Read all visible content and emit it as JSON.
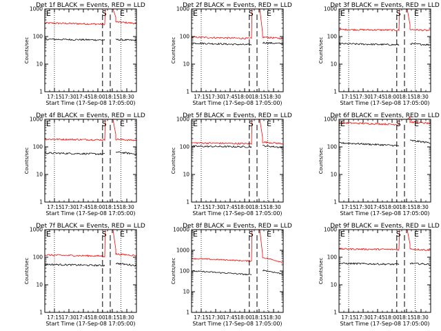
{
  "chart_data": [
    {
      "type": "line",
      "title": "Det 1f BLACK = Events, RED = LLD",
      "xlabel": "Start Time (17-Sep-08 17:05:00)",
      "ylabel": "Counts/sec",
      "yscale": "log",
      "ymax": 1000,
      "yticks": [
        "1",
        "10",
        "100",
        "1000"
      ],
      "x_ticks": [
        "17:15",
        "17:30",
        "17:45",
        "18:00",
        "18:15",
        "18:30"
      ],
      "markers": [
        {
          "label": "E",
          "time": "17:05"
        },
        {
          "label": "S",
          "time": "18:07"
        },
        {
          "label": "E",
          "time": "18:20"
        }
      ],
      "events": {
        "pre": [
          80,
          75
        ],
        "post": [
          78,
          72
        ]
      },
      "lld": {
        "pre": [
          310,
          280
        ],
        "post": [
          340,
          300
        ]
      }
    },
    {
      "type": "line",
      "title": "Det 2f BLACK = Events, RED = LLD",
      "xlabel": "Start Time (17-Sep-08 17:05:00)",
      "ylabel": "Counts/sec",
      "yscale": "log",
      "ymax": 1000,
      "yticks": [
        "1",
        "10",
        "100",
        "1000"
      ],
      "x_ticks": [
        "17:15",
        "17:30",
        "17:45",
        "18:00",
        "18:15",
        "18:30"
      ],
      "markers": [
        {
          "label": "E",
          "time": "17:05"
        },
        {
          "label": "S",
          "time": "18:07"
        },
        {
          "label": "E",
          "time": "18:20"
        }
      ],
      "events": {
        "pre": [
          58,
          50
        ],
        "post": [
          60,
          55
        ]
      },
      "lld": {
        "pre": [
          95,
          85
        ],
        "post": [
          95,
          85
        ]
      }
    },
    {
      "type": "line",
      "title": "Det 3f BLACK = Events, RED = LLD",
      "xlabel": "Start Time (17-Sep-08 17:05:00)",
      "ylabel": "Counts/sec",
      "yscale": "log",
      "ymax": 1000,
      "yticks": [
        "1",
        "10",
        "100",
        "1000"
      ],
      "x_ticks": [
        "17:15",
        "17:30",
        "17:45",
        "18:00",
        "18:15",
        "18:30"
      ],
      "markers": [
        {
          "label": "E",
          "time": "17:05"
        },
        {
          "label": "S",
          "time": "18:07"
        },
        {
          "label": "E",
          "time": "18:20"
        }
      ],
      "events": {
        "pre": [
          55,
          50
        ],
        "post": [
          55,
          50
        ]
      },
      "lld": {
        "pre": [
          180,
          170
        ],
        "post": [
          180,
          165
        ]
      }
    },
    {
      "type": "line",
      "title": "Det 4f BLACK = Events, RED = LLD",
      "xlabel": "Start Time (17-Sep-08 17:05:00)",
      "ylabel": "Counts/sec",
      "yscale": "log",
      "ymax": 1000,
      "yticks": [
        "1",
        "10",
        "100",
        "1000"
      ],
      "x_ticks": [
        "17:15",
        "17:30",
        "17:45",
        "18:00",
        "18:15",
        "18:30"
      ],
      "markers": [
        {
          "label": "E",
          "time": "17:05"
        },
        {
          "label": "S",
          "time": "18:07"
        },
        {
          "label": "E",
          "time": "18:20"
        }
      ],
      "events": {
        "pre": [
          60,
          55
        ],
        "post": [
          65,
          55
        ]
      },
      "lld": {
        "pre": [
          190,
          180
        ],
        "post": [
          190,
          170
        ]
      }
    },
    {
      "type": "line",
      "title": "Det 5f BLACK = Events, RED = LLD",
      "xlabel": "Start Time (17-Sep-08 17:05:00)",
      "ylabel": "Counts/sec",
      "yscale": "log",
      "ymax": 1000,
      "yticks": [
        "1",
        "10",
        "100",
        "1000"
      ],
      "x_ticks": [
        "17:15",
        "17:30",
        "17:45",
        "18:00",
        "18:15",
        "18:30"
      ],
      "markers": [
        {
          "label": "E",
          "time": "17:05"
        },
        {
          "label": "S",
          "time": "18:07"
        },
        {
          "label": "E",
          "time": "18:20"
        }
      ],
      "events": {
        "pre": [
          105,
          100
        ],
        "post": [
          110,
          95
        ]
      },
      "lld": {
        "pre": [
          140,
          130
        ],
        "post": [
          150,
          130
        ]
      }
    },
    {
      "type": "line",
      "title": "Det 6f BLACK = Events, RED = LLD",
      "xlabel": "Start Time (17-Sep-08 17:05:00)",
      "ylabel": "Counts/sec",
      "yscale": "log",
      "ymax": 1000,
      "yticks": [
        "1",
        "10",
        "100",
        "1000"
      ],
      "x_ticks": [
        "17:15",
        "17:30",
        "17:45",
        "18:00",
        "18:15",
        "18:30"
      ],
      "markers": [
        {
          "label": "E",
          "time": "17:05"
        },
        {
          "label": "S",
          "time": "18:07"
        },
        {
          "label": "E",
          "time": "18:20"
        }
      ],
      "events": {
        "pre": [
          140,
          110
        ],
        "post": [
          170,
          140
        ]
      },
      "lld": {
        "pre": [
          750,
          650
        ],
        "post": [
          800,
          700
        ]
      }
    },
    {
      "type": "line",
      "title": "Det 7f BLACK = Events, RED = LLD",
      "xlabel": "Start Time (17-Sep-08 17:05:00)",
      "ylabel": "Counts/sec",
      "yscale": "log",
      "ymax": 1000,
      "yticks": [
        "1",
        "10",
        "100",
        "1000"
      ],
      "x_ticks": [
        "17:15",
        "17:30",
        "17:45",
        "18:00",
        "18:15",
        "18:30"
      ],
      "markers": [
        {
          "label": "E",
          "time": "17:05"
        },
        {
          "label": "S",
          "time": "18:07"
        },
        {
          "label": "E",
          "time": "18:20"
        }
      ],
      "events": {
        "pre": [
          55,
          50
        ],
        "post": [
          60,
          50
        ]
      },
      "lld": {
        "pre": [
          120,
          110
        ],
        "post": [
          130,
          115
        ]
      }
    },
    {
      "type": "line",
      "title": "Det 8f BLACK = Events, RED = LLD",
      "xlabel": "Start Time (17-Sep-08 17:05:00)",
      "ylabel": "Counts/sec",
      "yscale": "log",
      "ymax": 10000,
      "yticks": [
        "1",
        "10",
        "100",
        "1000",
        "10000"
      ],
      "x_ticks": [
        "17:15",
        "17:30",
        "17:45",
        "18:00",
        "18:15",
        "18:30"
      ],
      "markers": [
        {
          "label": "E",
          "time": "17:05"
        },
        {
          "label": "S",
          "time": "18:07"
        },
        {
          "label": "E",
          "time": "18:20"
        }
      ],
      "events": {
        "pre": [
          100,
          65
        ],
        "post": [
          110,
          70
        ]
      },
      "lld": {
        "pre": [
          400,
          300
        ],
        "post": [
          450,
          250
        ]
      }
    },
    {
      "type": "line",
      "title": "Det 9f BLACK = Events, RED = LLD",
      "xlabel": "Start Time (17-Sep-08 17:05:00)",
      "ylabel": "Counts/sec",
      "yscale": "log",
      "ymax": 1000,
      "yticks": [
        "1",
        "10",
        "100",
        "1000"
      ],
      "x_ticks": [
        "17:15",
        "17:30",
        "17:45",
        "18:00",
        "18:15",
        "18:30"
      ],
      "markers": [
        {
          "label": "E",
          "time": "17:05"
        },
        {
          "label": "S",
          "time": "18:07"
        },
        {
          "label": "E",
          "time": "18:20"
        }
      ],
      "events": {
        "pre": [
          60,
          55
        ],
        "post": [
          60,
          55
        ]
      },
      "lld": {
        "pre": [
          200,
          190
        ],
        "post": [
          200,
          180
        ]
      }
    }
  ],
  "colors": {
    "events": "#000000",
    "lld": "#ff0000",
    "axes": "#000000",
    "background": "#ffffff"
  }
}
